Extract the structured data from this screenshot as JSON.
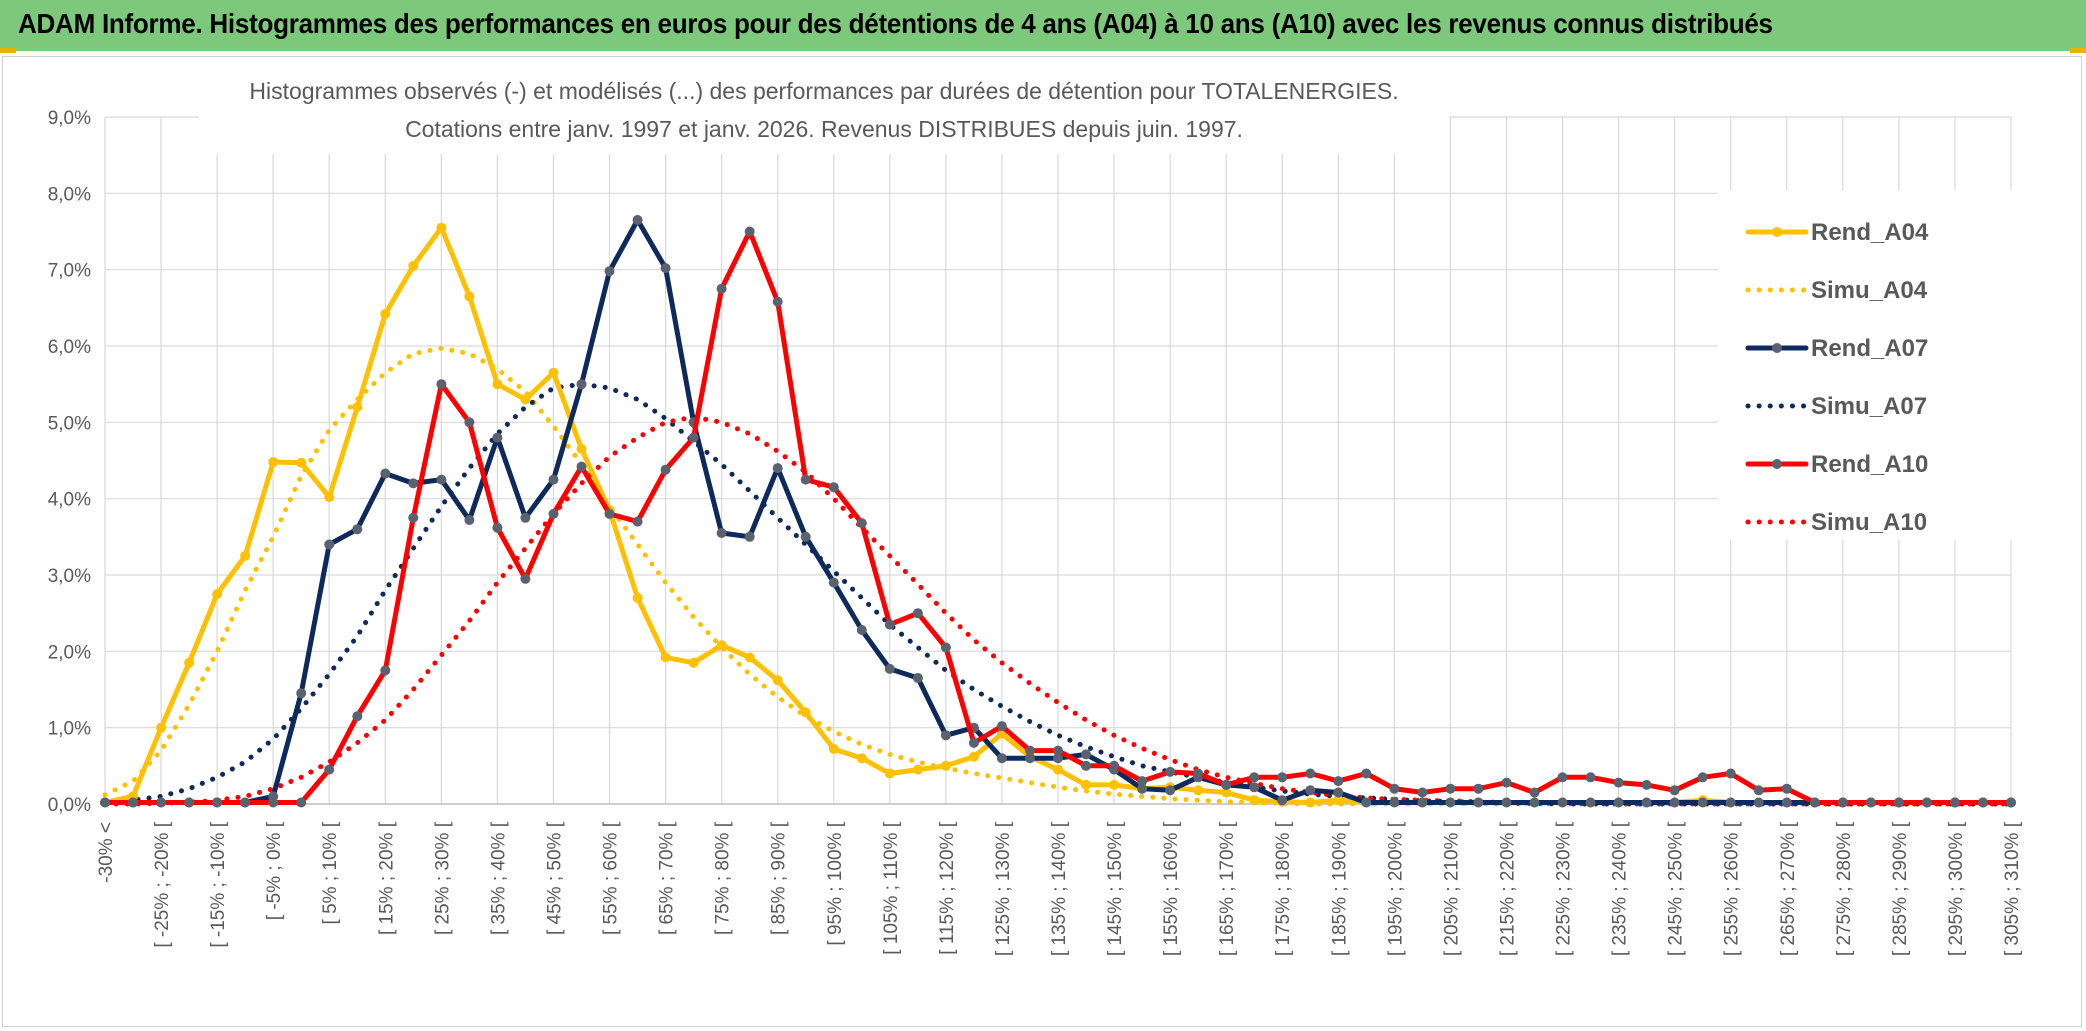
{
  "header": {
    "title": "ADAM Informe. Histogrammes des performances en euros pour des détentions de 4 ans (A04) à 10 ans (A10) avec les revenus connus distribués"
  },
  "chart_data": {
    "type": "line",
    "title_line1": "Histogrammes observés (-) et modélisés (...) des performances par durées de détention pour TOTALENERGIES.",
    "title_line2": "Cotations entre janv. 1997 et janv. 2026. Revenus DISTRIBUES depuis juin. 1997.",
    "ylim": [
      0,
      9
    ],
    "y_ticks": [
      "0,0%",
      "1,0%",
      "2,0%",
      "3,0%",
      "4,0%",
      "5,0%",
      "6,0%",
      "7,0%",
      "8,0%",
      "9,0%"
    ],
    "grid": true,
    "legend_position": "right",
    "x_tick_labels": [
      "-30% <",
      "[ -25% ; -20% [",
      "[ -15% ; -10% [",
      "[ -5% ; 0% [",
      "[ 5% ; 10% [",
      "[ 15% ; 20% [",
      "[ 25% ; 30% [",
      "[ 35% ; 40% [",
      "[ 45% ; 50% [",
      "[ 55% ; 60% [",
      "[ 65% ; 70% [",
      "[ 75% ; 80% [",
      "[ 85% ; 90% [",
      "[ 95% ; 100% [",
      "[ 105% ; 110% [",
      "[ 115% ; 120% [",
      "[ 125% ; 130% [",
      "[ 135% ; 140% [",
      "[ 145% ; 150% [",
      "[ 155% ; 160% [",
      "[ 165% ; 170% [",
      "[ 175% ; 180% [",
      "[ 185% ; 190% [",
      "[ 195% ; 200% [",
      "[ 205% ; 210% [",
      "[ 215% ; 220% [",
      "[ 225% ; 230% [",
      "[ 235% ; 240% [",
      "[ 245% ; 250% [",
      "[ 255% ; 260% [",
      "[ 265% ; 270% [",
      "[ 275% ; 280% [",
      "[ 285% ; 290% [",
      "[ 295% ; 300% [",
      "[ 305% ; 310% ["
    ],
    "x_start": -30,
    "x_step": 5,
    "n_points": 69,
    "series": [
      {
        "name": "Rend_A04",
        "color": "#ffc000",
        "style": "solid",
        "markers": true,
        "values": [
          0.02,
          0.1,
          1.0,
          1.85,
          2.75,
          3.25,
          4.48,
          4.47,
          4.02,
          5.2,
          6.42,
          7.05,
          7.55,
          6.65,
          5.5,
          5.3,
          5.65,
          4.65,
          3.85,
          2.7,
          1.92,
          1.85,
          2.08,
          1.92,
          1.62,
          1.2,
          0.72,
          0.6,
          0.4,
          0.45,
          0.5,
          0.62,
          0.92,
          0.62,
          0.45,
          0.25,
          0.25,
          0.2,
          0.22,
          0.18,
          0.15,
          0.05,
          0.03,
          0.02,
          0.05,
          0.02,
          0.02,
          0.02,
          0.02,
          0.02,
          0.02,
          0.02,
          0.02,
          0.02,
          0.02,
          0.02,
          0.02,
          0.05,
          0.02,
          0.02,
          0.02,
          0.02,
          0.02,
          0.02,
          0.02,
          0.02,
          0.02,
          0.02,
          0.02
        ]
      },
      {
        "name": "Simu_A04",
        "color": "#ffc000",
        "style": "dotted",
        "markers": false,
        "values": [
          0.12,
          0.3,
          0.7,
          1.3,
          2.0,
          2.8,
          3.5,
          4.3,
          4.9,
          5.3,
          5.65,
          5.9,
          5.97,
          5.9,
          5.7,
          5.4,
          4.95,
          4.45,
          3.9,
          3.4,
          2.9,
          2.45,
          2.05,
          1.7,
          1.4,
          1.15,
          0.95,
          0.78,
          0.65,
          0.55,
          0.47,
          0.4,
          0.34,
          0.28,
          0.22,
          0.17,
          0.13,
          0.1,
          0.07,
          0.05,
          0.03,
          0.02,
          0.01,
          0.0,
          0.0,
          0.0,
          0.0,
          0.0,
          0.0,
          0.0,
          0.0,
          0.0,
          0.0,
          0.0,
          0.0,
          0.0,
          0.0,
          0.0,
          0.0,
          0.0,
          0.0,
          0.0,
          0.0,
          0.0,
          0.0,
          0.0,
          0.0,
          0.0,
          0.0
        ]
      },
      {
        "name": "Rend_A07",
        "color": "#0e2a5c",
        "style": "solid",
        "markers": true,
        "values": [
          0.02,
          0.02,
          0.02,
          0.02,
          0.02,
          0.02,
          0.1,
          1.45,
          3.4,
          3.6,
          4.33,
          4.2,
          4.25,
          3.72,
          4.8,
          3.75,
          4.25,
          5.5,
          6.98,
          7.65,
          7.02,
          5.0,
          3.55,
          3.5,
          4.4,
          3.5,
          2.9,
          2.28,
          1.77,
          1.65,
          0.9,
          1.0,
          0.6,
          0.6,
          0.6,
          0.65,
          0.45,
          0.2,
          0.18,
          0.35,
          0.25,
          0.22,
          0.05,
          0.18,
          0.15,
          0.02,
          0.02,
          0.02,
          0.02,
          0.02,
          0.02,
          0.02,
          0.02,
          0.02,
          0.02,
          0.02,
          0.02,
          0.02,
          0.02,
          0.02,
          0.02,
          0.02,
          0.02,
          0.02,
          0.02,
          0.02,
          0.02,
          0.02,
          0.02
        ]
      },
      {
        "name": "Simu_A07",
        "color": "#0e2a5c",
        "style": "dotted",
        "markers": false,
        "values": [
          0.0,
          0.05,
          0.1,
          0.2,
          0.35,
          0.55,
          0.85,
          1.25,
          1.7,
          2.2,
          2.8,
          3.35,
          3.9,
          4.4,
          4.85,
          5.2,
          5.45,
          5.5,
          5.45,
          5.3,
          5.05,
          4.75,
          4.45,
          4.1,
          3.75,
          3.4,
          3.05,
          2.7,
          2.35,
          2.05,
          1.75,
          1.5,
          1.28,
          1.08,
          0.9,
          0.75,
          0.62,
          0.5,
          0.42,
          0.35,
          0.28,
          0.22,
          0.17,
          0.13,
          0.1,
          0.08,
          0.06,
          0.04,
          0.03,
          0.02,
          0.01,
          0.01,
          0.0,
          0.0,
          0.0,
          0.0,
          0.0,
          0.0,
          0.0,
          0.0,
          0.0,
          0.0,
          0.0,
          0.0,
          0.0,
          0.0,
          0.0,
          0.0,
          0.0
        ]
      },
      {
        "name": "Rend_A10",
        "color": "#ff0000",
        "style": "solid",
        "markers": true,
        "values": [
          0.02,
          0.02,
          0.02,
          0.02,
          0.02,
          0.02,
          0.02,
          0.02,
          0.45,
          1.15,
          1.75,
          3.75,
          5.5,
          5.0,
          3.62,
          2.95,
          3.8,
          4.42,
          3.8,
          3.7,
          4.38,
          4.8,
          6.75,
          7.5,
          6.58,
          4.25,
          4.15,
          3.68,
          2.35,
          2.5,
          2.05,
          0.8,
          1.02,
          0.7,
          0.7,
          0.5,
          0.5,
          0.3,
          0.42,
          0.4,
          0.25,
          0.35,
          0.35,
          0.4,
          0.3,
          0.4,
          0.2,
          0.15,
          0.2,
          0.2,
          0.28,
          0.15,
          0.35,
          0.35,
          0.28,
          0.25,
          0.18,
          0.35,
          0.4,
          0.18,
          0.2,
          0.02,
          0.02,
          0.02,
          0.02,
          0.02,
          0.02,
          0.02,
          0.02
        ]
      },
      {
        "name": "Simu_A10",
        "color": "#ff0000",
        "style": "dotted",
        "markers": false,
        "values": [
          0.0,
          0.0,
          0.01,
          0.02,
          0.05,
          0.1,
          0.2,
          0.35,
          0.55,
          0.8,
          1.1,
          1.5,
          1.95,
          2.4,
          2.9,
          3.35,
          3.8,
          4.2,
          4.55,
          4.8,
          5.0,
          5.07,
          5.0,
          4.85,
          4.62,
          4.35,
          4.0,
          3.62,
          3.25,
          2.88,
          2.5,
          2.15,
          1.85,
          1.58,
          1.33,
          1.1,
          0.9,
          0.73,
          0.58,
          0.45,
          0.35,
          0.27,
          0.2,
          0.15,
          0.11,
          0.08,
          0.06,
          0.05,
          0.04,
          0.03,
          0.02,
          0.01,
          0.01,
          0.0,
          0.0,
          0.0,
          0.0,
          0.0,
          0.0,
          0.0,
          0.0,
          0.0,
          0.0,
          0.0,
          0.0,
          0.0,
          0.0,
          0.0,
          0.0
        ]
      }
    ]
  }
}
